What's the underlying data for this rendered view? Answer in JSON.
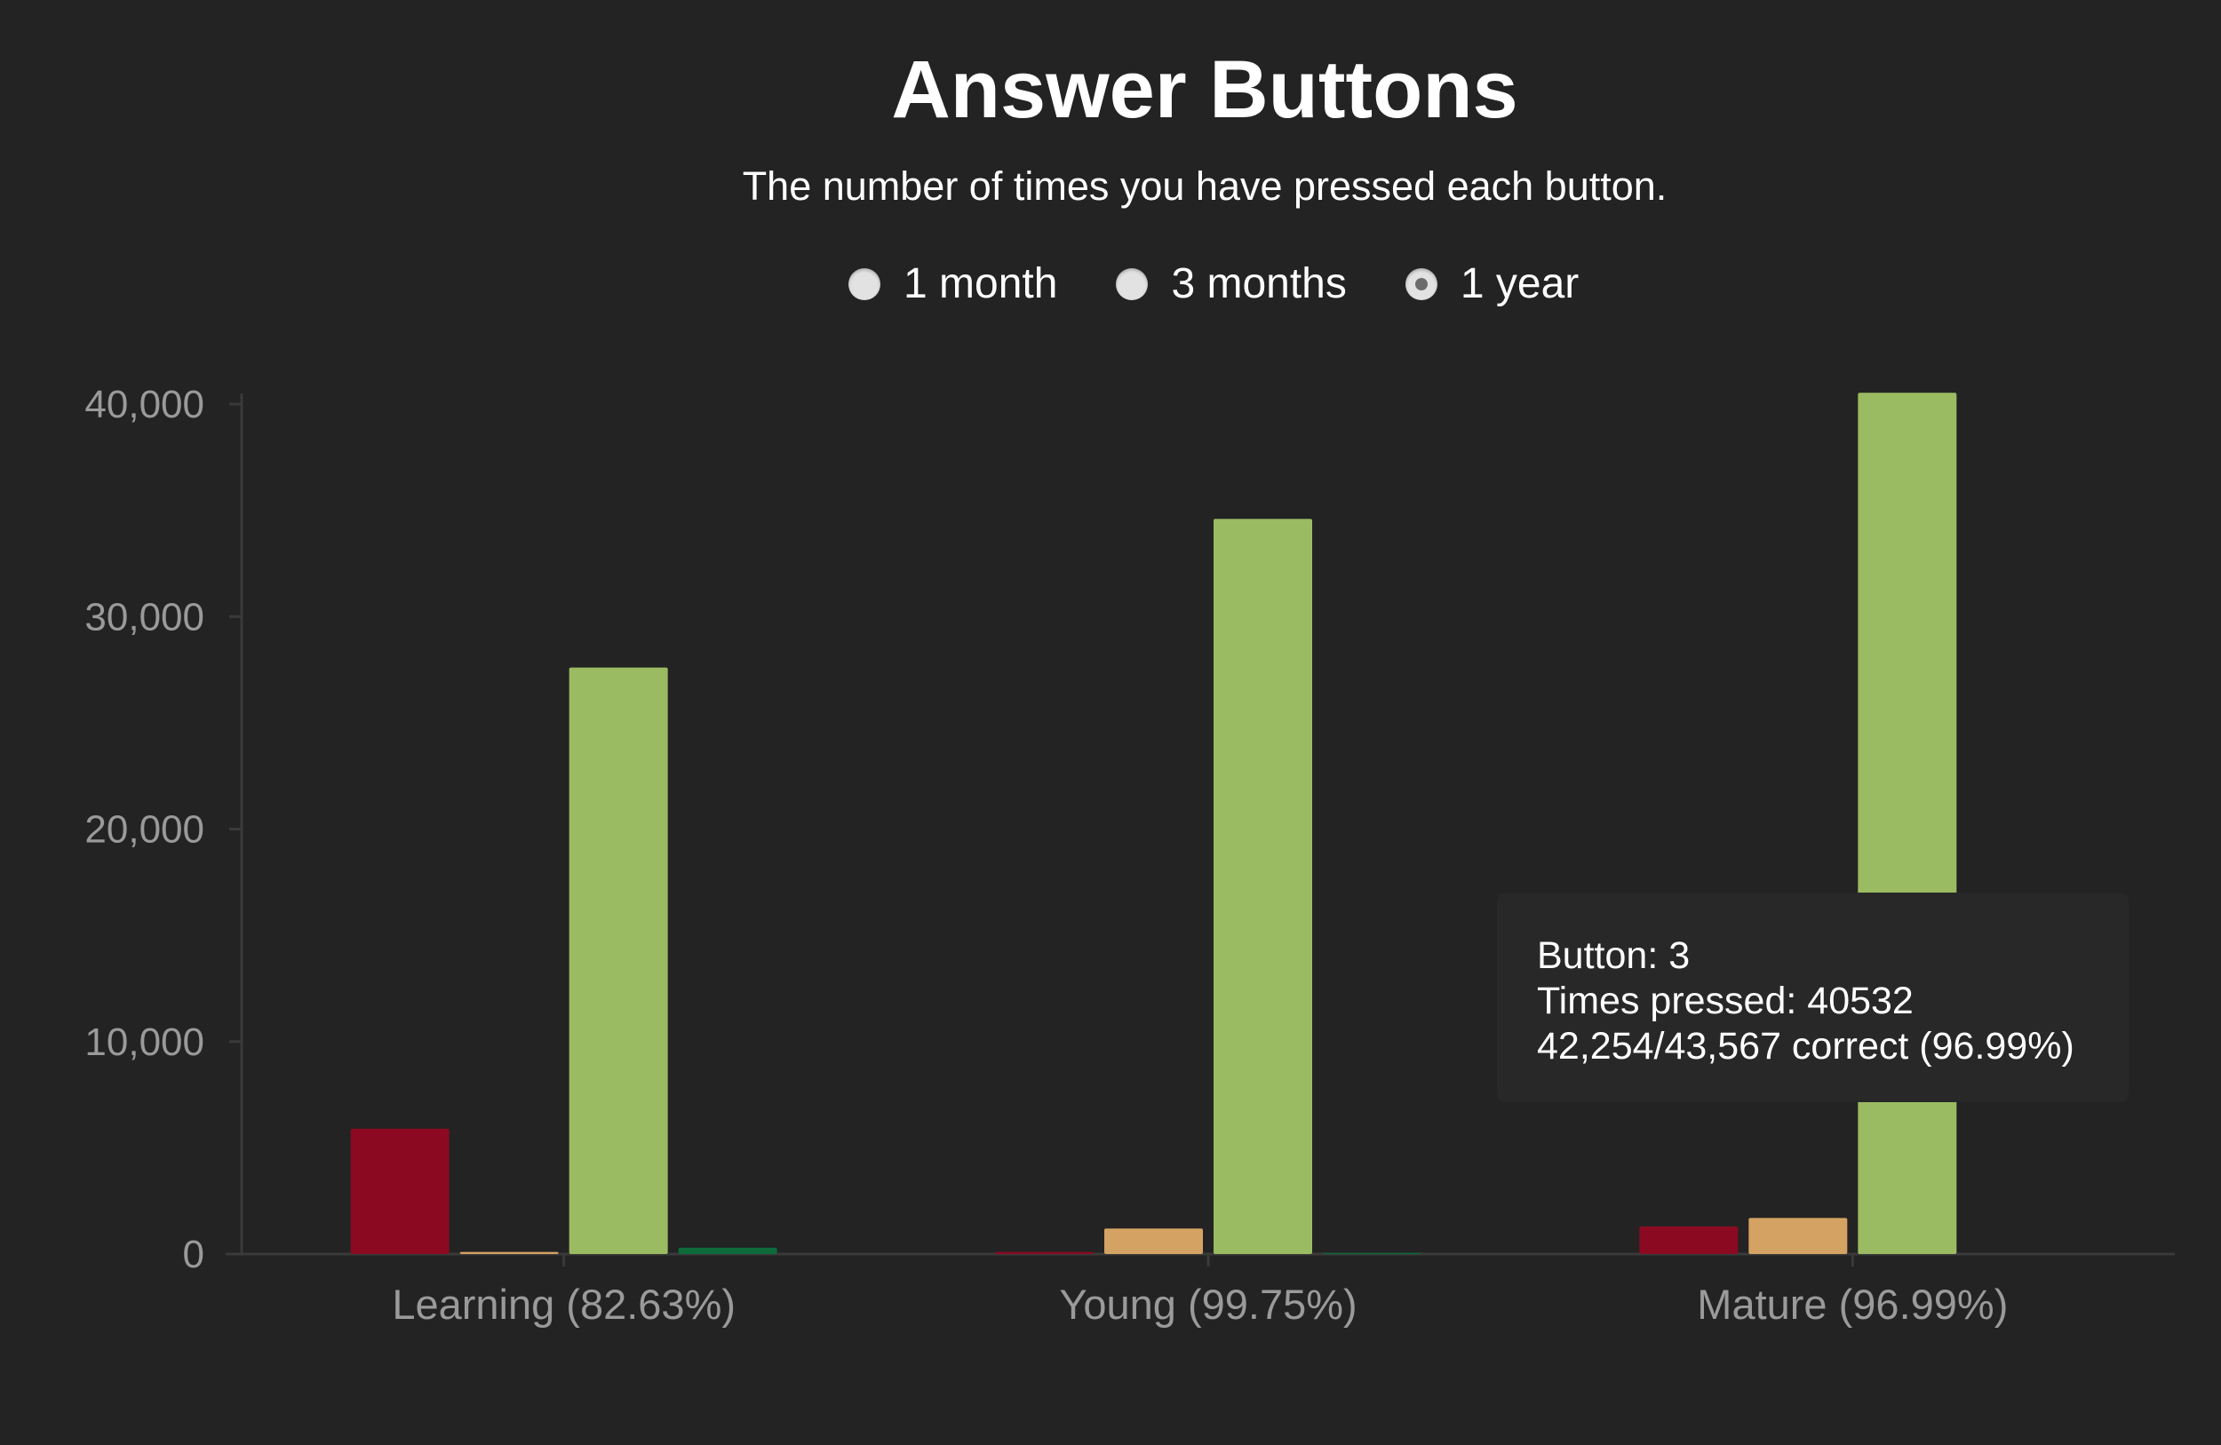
{
  "header": {
    "title": "Answer Buttons",
    "subtitle": "The number of times you have pressed each button."
  },
  "range": {
    "options": [
      {
        "label": "1 month",
        "checked": false
      },
      {
        "label": "3 months",
        "checked": false
      },
      {
        "label": "1 year",
        "checked": true
      }
    ]
  },
  "tooltip": {
    "button_line": "Button: 3",
    "pressed_line": "Times pressed: 40532",
    "correct_line": "42,254/43,567 correct (96.99%)"
  },
  "colors": {
    "background": "#232323",
    "button_1": "#8b0a22",
    "button_2": "#d4a262",
    "button_3": "#9bbb62",
    "button_4": "#0d6a3a",
    "axis": "#3a3a3a",
    "tick_text": "#9a9a9a"
  },
  "chart_data": {
    "type": "bar",
    "categories": [
      "Learning (82.63%)",
      "Young (99.75%)",
      "Mature (96.99%)"
    ],
    "series": [
      {
        "values": [
          5900,
          100,
          1300
        ]
      },
      {
        "values": [
          100,
          1200,
          1700
        ]
      },
      {
        "values": [
          27600,
          34600,
          40532
        ]
      },
      {
        "values": [
          300,
          60,
          0
        ]
      }
    ],
    "yticks": [
      0,
      10000,
      20000,
      30000,
      40000
    ],
    "ytick_labels": [
      "0",
      "10,000",
      "20,000",
      "30,000",
      "40,000"
    ],
    "ylim": [
      0,
      40000
    ],
    "legend": "none",
    "grid": false
  }
}
